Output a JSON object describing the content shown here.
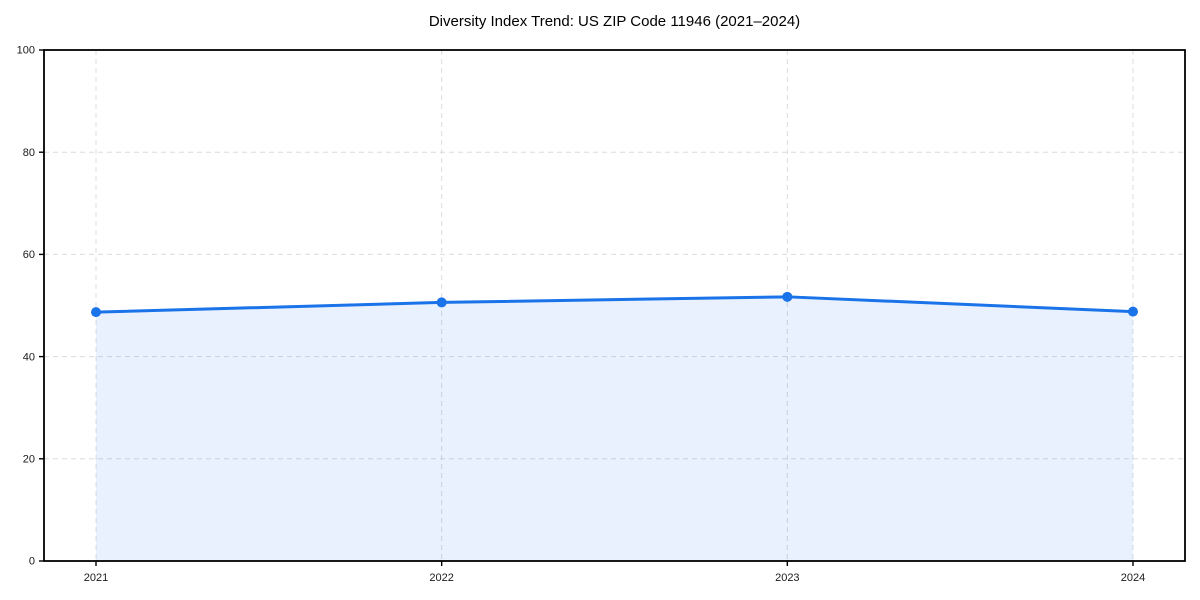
{
  "page": {
    "background_color": "#ffffff"
  },
  "chart_data": {
    "type": "area",
    "title": "Diversity Index Trend: US ZIP Code 11946 (2021–2024)",
    "categories": [
      "2021",
      "2022",
      "2023",
      "2024"
    ],
    "series": [
      {
        "name": "Diversity Index",
        "values": [
          48.7,
          50.6,
          51.7,
          48.8
        ]
      }
    ],
    "xlabel": "",
    "ylabel": "",
    "ylim": [
      0,
      100
    ],
    "yticks": [
      0,
      20,
      40,
      60,
      80,
      100
    ],
    "grid": "dashed-both-axes",
    "legend": "none",
    "colors": {
      "line": "#1a73e8",
      "marker": "#1a73e8",
      "area_fill": "rgba(26,115,232,0.10)",
      "gridline": "#dcdcdc",
      "spine": "#000000",
      "tick_label": "#1a1a1a",
      "title": "#000000"
    }
  }
}
